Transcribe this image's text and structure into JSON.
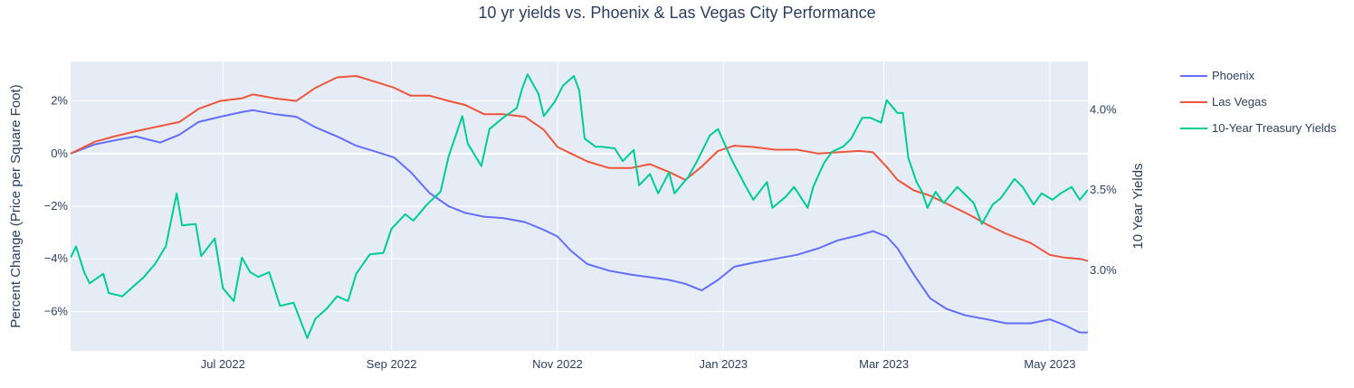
{
  "chart_data": {
    "type": "line",
    "title": "10 yr yields vs. Phoenix & Las Vegas City Performance",
    "xlabel": "",
    "ylabel": "Percent Change (Price per Square Foot)",
    "y2label": "10 Year Yields",
    "x_range": [
      "2022-05-06",
      "2023-05-15"
    ],
    "y_range": [
      -7.5,
      3.5
    ],
    "y2_range": [
      2.5,
      4.3
    ],
    "x_ticks": [
      {
        "date": "2022-07-01",
        "label": "Jul 2022"
      },
      {
        "date": "2022-09-01",
        "label": "Sep 2022"
      },
      {
        "date": "2022-11-01",
        "label": "Nov 2022"
      },
      {
        "date": "2023-01-01",
        "label": "Jan 2023"
      },
      {
        "date": "2023-03-01",
        "label": "Mar 2023"
      },
      {
        "date": "2023-05-01",
        "label": "May 2023"
      }
    ],
    "y_ticks": [
      {
        "value": 2,
        "label": "2%"
      },
      {
        "value": 0,
        "label": "0%"
      },
      {
        "value": -2,
        "label": "−2%"
      },
      {
        "value": -4,
        "label": "−4%"
      },
      {
        "value": -6,
        "label": "−6%"
      }
    ],
    "y2_ticks": [
      {
        "value": 4.0,
        "label": "4.0%"
      },
      {
        "value": 3.5,
        "label": "3.5%"
      },
      {
        "value": 3.0,
        "label": "3.0%"
      }
    ],
    "grid": true,
    "legend_position": "right",
    "series": [
      {
        "name": "Phoenix",
        "color": "#636efa",
        "axis": "y",
        "points": [
          [
            "2022-05-06",
            0.0
          ],
          [
            "2022-05-15",
            0.35
          ],
          [
            "2022-05-22",
            0.5
          ],
          [
            "2022-05-30",
            0.65
          ],
          [
            "2022-06-08",
            0.42
          ],
          [
            "2022-06-15",
            0.72
          ],
          [
            "2022-06-22",
            1.2
          ],
          [
            "2022-06-30",
            1.4
          ],
          [
            "2022-07-08",
            1.58
          ],
          [
            "2022-07-12",
            1.65
          ],
          [
            "2022-07-20",
            1.5
          ],
          [
            "2022-07-28",
            1.4
          ],
          [
            "2022-08-04",
            1.0
          ],
          [
            "2022-08-12",
            0.65
          ],
          [
            "2022-08-19",
            0.3
          ],
          [
            "2022-08-27",
            0.05
          ],
          [
            "2022-09-02",
            -0.15
          ],
          [
            "2022-09-08",
            -0.7
          ],
          [
            "2022-09-15",
            -1.5
          ],
          [
            "2022-09-22",
            -2.0
          ],
          [
            "2022-09-28",
            -2.25
          ],
          [
            "2022-10-05",
            -2.4
          ],
          [
            "2022-10-12",
            -2.45
          ],
          [
            "2022-10-20",
            -2.6
          ],
          [
            "2022-10-27",
            -2.9
          ],
          [
            "2022-11-01",
            -3.15
          ],
          [
            "2022-11-06",
            -3.7
          ],
          [
            "2022-11-12",
            -4.2
          ],
          [
            "2022-11-20",
            -4.45
          ],
          [
            "2022-11-28",
            -4.6
          ],
          [
            "2022-12-05",
            -4.7
          ],
          [
            "2022-12-12",
            -4.8
          ],
          [
            "2022-12-18",
            -4.95
          ],
          [
            "2022-12-24",
            -5.2
          ],
          [
            "2022-12-30",
            -4.8
          ],
          [
            "2023-01-05",
            -4.3
          ],
          [
            "2023-01-12",
            -4.15
          ],
          [
            "2023-01-20",
            -4.0
          ],
          [
            "2023-01-28",
            -3.85
          ],
          [
            "2023-02-05",
            -3.6
          ],
          [
            "2023-02-12",
            -3.3
          ],
          [
            "2023-02-20",
            -3.1
          ],
          [
            "2023-02-25",
            -2.95
          ],
          [
            "2023-03-02",
            -3.15
          ],
          [
            "2023-03-06",
            -3.6
          ],
          [
            "2023-03-12",
            -4.6
          ],
          [
            "2023-03-18",
            -5.5
          ],
          [
            "2023-03-24",
            -5.9
          ],
          [
            "2023-03-31",
            -6.15
          ],
          [
            "2023-04-08",
            -6.3
          ],
          [
            "2023-04-15",
            -6.45
          ],
          [
            "2023-04-24",
            -6.45
          ],
          [
            "2023-05-01",
            -6.3
          ],
          [
            "2023-05-06",
            -6.5
          ],
          [
            "2023-05-12",
            -6.8
          ],
          [
            "2023-05-20",
            -6.8
          ]
        ]
      },
      {
        "name": "Las Vegas",
        "color": "#ef553b",
        "axis": "y",
        "points": [
          [
            "2022-05-06",
            0.0
          ],
          [
            "2022-05-15",
            0.45
          ],
          [
            "2022-05-22",
            0.65
          ],
          [
            "2022-05-30",
            0.85
          ],
          [
            "2022-06-08",
            1.05
          ],
          [
            "2022-06-15",
            1.2
          ],
          [
            "2022-06-22",
            1.7
          ],
          [
            "2022-06-30",
            2.0
          ],
          [
            "2022-07-08",
            2.1
          ],
          [
            "2022-07-12",
            2.25
          ],
          [
            "2022-07-20",
            2.1
          ],
          [
            "2022-07-28",
            2.0
          ],
          [
            "2022-08-04",
            2.5
          ],
          [
            "2022-08-12",
            2.9
          ],
          [
            "2022-08-19",
            2.95
          ],
          [
            "2022-08-27",
            2.7
          ],
          [
            "2022-09-02",
            2.5
          ],
          [
            "2022-09-08",
            2.2
          ],
          [
            "2022-09-15",
            2.2
          ],
          [
            "2022-09-22",
            2.0
          ],
          [
            "2022-09-28",
            1.85
          ],
          [
            "2022-10-05",
            1.5
          ],
          [
            "2022-10-12",
            1.5
          ],
          [
            "2022-10-20",
            1.4
          ],
          [
            "2022-10-27",
            0.9
          ],
          [
            "2022-11-01",
            0.25
          ],
          [
            "2022-11-06",
            0.0
          ],
          [
            "2022-11-12",
            -0.3
          ],
          [
            "2022-11-20",
            -0.55
          ],
          [
            "2022-11-28",
            -0.55
          ],
          [
            "2022-12-05",
            -0.4
          ],
          [
            "2022-12-12",
            -0.7
          ],
          [
            "2022-12-18",
            -1.0
          ],
          [
            "2022-12-24",
            -0.5
          ],
          [
            "2022-12-30",
            0.1
          ],
          [
            "2023-01-05",
            0.3
          ],
          [
            "2023-01-12",
            0.25
          ],
          [
            "2023-01-20",
            0.15
          ],
          [
            "2023-01-28",
            0.15
          ],
          [
            "2023-02-05",
            0.0
          ],
          [
            "2023-02-12",
            0.05
          ],
          [
            "2023-02-20",
            0.1
          ],
          [
            "2023-02-25",
            0.05
          ],
          [
            "2023-03-02",
            -0.5
          ],
          [
            "2023-03-06",
            -1.0
          ],
          [
            "2023-03-12",
            -1.4
          ],
          [
            "2023-03-18",
            -1.6
          ],
          [
            "2023-03-24",
            -1.9
          ],
          [
            "2023-03-31",
            -2.25
          ],
          [
            "2023-04-08",
            -2.7
          ],
          [
            "2023-04-15",
            -3.05
          ],
          [
            "2023-04-24",
            -3.4
          ],
          [
            "2023-05-01",
            -3.85
          ],
          [
            "2023-05-06",
            -3.95
          ],
          [
            "2023-05-12",
            -4.0
          ],
          [
            "2023-05-20",
            -4.2
          ]
        ]
      },
      {
        "name": "10-Year Treasury Yields",
        "color": "#00cc96",
        "axis": "y2",
        "points": [
          [
            "2022-05-06",
            3.08
          ],
          [
            "2022-05-08",
            3.15
          ],
          [
            "2022-05-11",
            2.99
          ],
          [
            "2022-05-13",
            2.92
          ],
          [
            "2022-05-18",
            2.98
          ],
          [
            "2022-05-20",
            2.86
          ],
          [
            "2022-05-25",
            2.84
          ],
          [
            "2022-06-02",
            2.96
          ],
          [
            "2022-06-06",
            3.04
          ],
          [
            "2022-06-10",
            3.15
          ],
          [
            "2022-06-14",
            3.48
          ],
          [
            "2022-06-16",
            3.28
          ],
          [
            "2022-06-21",
            3.29
          ],
          [
            "2022-06-23",
            3.09
          ],
          [
            "2022-06-28",
            3.2
          ],
          [
            "2022-07-01",
            2.89
          ],
          [
            "2022-07-05",
            2.81
          ],
          [
            "2022-07-08",
            3.08
          ],
          [
            "2022-07-11",
            2.99
          ],
          [
            "2022-07-14",
            2.96
          ],
          [
            "2022-07-18",
            2.99
          ],
          [
            "2022-07-22",
            2.78
          ],
          [
            "2022-07-27",
            2.8
          ],
          [
            "2022-08-01",
            2.58
          ],
          [
            "2022-08-04",
            2.7
          ],
          [
            "2022-08-08",
            2.76
          ],
          [
            "2022-08-12",
            2.84
          ],
          [
            "2022-08-16",
            2.81
          ],
          [
            "2022-08-19",
            2.98
          ],
          [
            "2022-08-24",
            3.1
          ],
          [
            "2022-08-29",
            3.11
          ],
          [
            "2022-09-01",
            3.26
          ],
          [
            "2022-09-06",
            3.35
          ],
          [
            "2022-09-09",
            3.31
          ],
          [
            "2022-09-14",
            3.41
          ],
          [
            "2022-09-19",
            3.49
          ],
          [
            "2022-09-22",
            3.71
          ],
          [
            "2022-09-27",
            3.96
          ],
          [
            "2022-09-29",
            3.79
          ],
          [
            "2022-10-04",
            3.65
          ],
          [
            "2022-10-07",
            3.88
          ],
          [
            "2022-10-12",
            3.95
          ],
          [
            "2022-10-17",
            4.01
          ],
          [
            "2022-10-19",
            4.13
          ],
          [
            "2022-10-21",
            4.22
          ],
          [
            "2022-10-25",
            4.1
          ],
          [
            "2022-10-27",
            3.96
          ],
          [
            "2022-10-31",
            4.05
          ],
          [
            "2022-11-03",
            4.15
          ],
          [
            "2022-11-07",
            4.21
          ],
          [
            "2022-11-09",
            4.12
          ],
          [
            "2022-11-11",
            3.82
          ],
          [
            "2022-11-15",
            3.77
          ],
          [
            "2022-11-17",
            3.77
          ],
          [
            "2022-11-22",
            3.76
          ],
          [
            "2022-11-25",
            3.68
          ],
          [
            "2022-11-29",
            3.75
          ],
          [
            "2022-12-01",
            3.53
          ],
          [
            "2022-12-05",
            3.6
          ],
          [
            "2022-12-08",
            3.48
          ],
          [
            "2022-12-12",
            3.61
          ],
          [
            "2022-12-14",
            3.48
          ],
          [
            "2022-12-19",
            3.58
          ],
          [
            "2022-12-22",
            3.67
          ],
          [
            "2022-12-27",
            3.84
          ],
          [
            "2022-12-30",
            3.88
          ],
          [
            "2023-01-04",
            3.69
          ],
          [
            "2023-01-09",
            3.53
          ],
          [
            "2023-01-12",
            3.44
          ],
          [
            "2023-01-17",
            3.55
          ],
          [
            "2023-01-19",
            3.39
          ],
          [
            "2023-01-24",
            3.46
          ],
          [
            "2023-01-27",
            3.52
          ],
          [
            "2023-02-01",
            3.39
          ],
          [
            "2023-02-03",
            3.52
          ],
          [
            "2023-02-07",
            3.67
          ],
          [
            "2023-02-10",
            3.74
          ],
          [
            "2023-02-14",
            3.77
          ],
          [
            "2023-02-17",
            3.82
          ],
          [
            "2023-02-21",
            3.95
          ],
          [
            "2023-02-24",
            3.95
          ],
          [
            "2023-02-28",
            3.92
          ],
          [
            "2023-03-02",
            4.06
          ],
          [
            "2023-03-06",
            3.98
          ],
          [
            "2023-03-08",
            3.98
          ],
          [
            "2023-03-10",
            3.7
          ],
          [
            "2023-03-13",
            3.55
          ],
          [
            "2023-03-15",
            3.49
          ],
          [
            "2023-03-17",
            3.39
          ],
          [
            "2023-03-20",
            3.49
          ],
          [
            "2023-03-23",
            3.42
          ],
          [
            "2023-03-28",
            3.52
          ],
          [
            "2023-04-03",
            3.42
          ],
          [
            "2023-04-06",
            3.29
          ],
          [
            "2023-04-10",
            3.41
          ],
          [
            "2023-04-13",
            3.45
          ],
          [
            "2023-04-18",
            3.57
          ],
          [
            "2023-04-21",
            3.52
          ],
          [
            "2023-04-25",
            3.41
          ],
          [
            "2023-04-28",
            3.48
          ],
          [
            "2023-05-02",
            3.44
          ],
          [
            "2023-05-05",
            3.48
          ],
          [
            "2023-05-09",
            3.52
          ],
          [
            "2023-05-12",
            3.44
          ],
          [
            "2023-05-15",
            3.5
          ]
        ]
      }
    ]
  }
}
